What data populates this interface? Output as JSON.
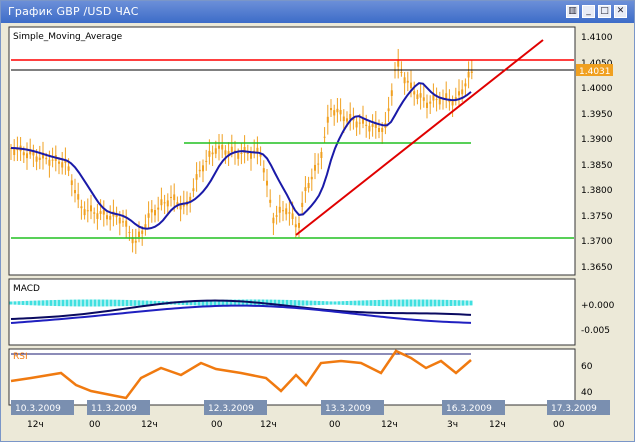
{
  "window": {
    "title": "График GBP /USD  ЧАС",
    "buttons": [
      {
        "name": "tile-button",
        "glyph": "▥"
      },
      {
        "name": "minimize-button",
        "glyph": "_"
      },
      {
        "name": "maximize-button",
        "glyph": "□"
      },
      {
        "name": "close-button",
        "glyph": "✕"
      }
    ]
  },
  "main_panel": {
    "indicator_label": "Simple_Moving_Average",
    "current_price": "1.4031",
    "y_ticks": [
      "1.4100",
      "1.4050",
      "1.4000",
      "1.3950",
      "1.3900",
      "1.3850",
      "1.3800",
      "1.3750",
      "1.3700",
      "1.3650"
    ]
  },
  "macd_panel": {
    "label": "MACD",
    "y_ticks": [
      "+0.000",
      "-0.005"
    ]
  },
  "rsi_panel": {
    "label": "RSI",
    "y_ticks": [
      "60",
      "40"
    ]
  },
  "time_axis": {
    "date_labels": [
      "10.3.2009",
      "11.3.2009",
      "12.3.2009",
      "13.3.2009",
      "16.3.2009",
      "17.3.2009"
    ],
    "hour_labels": [
      "12ч",
      "00",
      "12ч",
      "00",
      "12ч",
      "00",
      "12ч",
      "3ч",
      "12ч",
      "00"
    ]
  },
  "colors": {
    "candles": "#f0a020",
    "sma": "#1a1aa8",
    "trend_line": "#e00000",
    "support_line": "#20c020",
    "resistance_line": "#ff0000",
    "macd_fast": "#0a0a60",
    "macd_slow": "#2020c0",
    "macd_hist": "#40e0e0",
    "rsi_line": "#f07a10",
    "price_badge": "#f0a020"
  }
}
